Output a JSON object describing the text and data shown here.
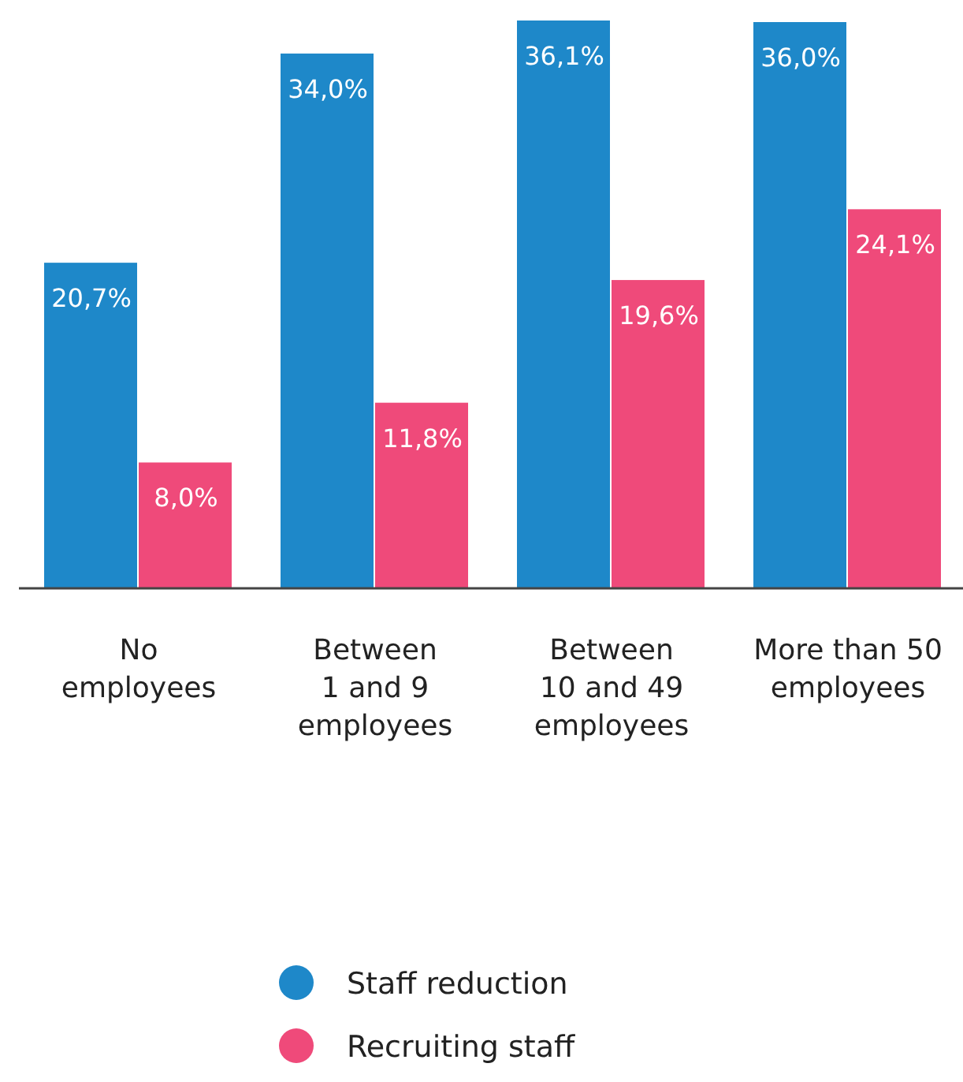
{
  "chart_data": {
    "type": "bar",
    "categories": [
      "No\nemployees",
      "Between\n1 and 9\nemployees",
      "Between\n10 and 49\nemployees",
      "More than 50\nemployees"
    ],
    "series": [
      {
        "name": "Staff reduction",
        "color": "#1e88c9",
        "values": [
          20.7,
          34.0,
          36.1,
          36.0
        ],
        "value_labels": [
          "20,7%",
          "34,0%",
          "36,1%",
          "36,0%"
        ]
      },
      {
        "name": "Recruiting staff",
        "color": "#ef4a7a",
        "values": [
          8.0,
          11.8,
          19.6,
          24.1
        ],
        "value_labels": [
          "8,0%",
          "11,8%",
          "19,6%",
          "24,1%"
        ]
      }
    ],
    "legend": "bottom"
  }
}
